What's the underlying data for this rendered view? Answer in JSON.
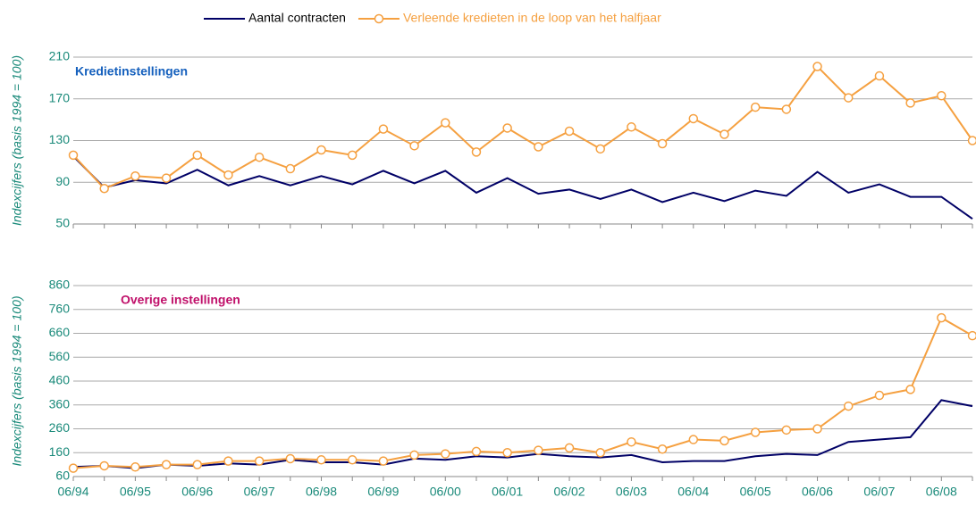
{
  "chart_data": [
    {
      "type": "line",
      "title": "Kredietinstellingen",
      "title_color": "#1560bd",
      "y_label": "Indexcijfers (basis 1994 = 100)",
      "ylim": [
        50,
        210
      ],
      "yticks": [
        50,
        90,
        130,
        170,
        210
      ],
      "grid": true,
      "legend": "top",
      "series": [
        {
          "name": "Aantal contracten",
          "color": "#000066",
          "marker": false,
          "values": [
            115,
            85,
            92,
            89,
            102,
            87,
            96,
            87,
            96,
            88,
            101,
            89,
            101,
            80,
            94,
            79,
            83,
            74,
            83,
            71,
            80,
            72,
            82,
            77,
            100,
            80,
            88,
            76,
            76,
            55
          ]
        },
        {
          "name": "Verleende kredieten in de loop van het halfjaar",
          "color": "#f5a040",
          "marker": true,
          "values": [
            116,
            84,
            96,
            94,
            116,
            97,
            114,
            103,
            121,
            116,
            141,
            125,
            147,
            119,
            142,
            124,
            139,
            122,
            143,
            127,
            151,
            136,
            162,
            160,
            201,
            171,
            192,
            166,
            173,
            130
          ]
        }
      ]
    },
    {
      "type": "line",
      "title": "Overige instellingen",
      "title_color": "#c0106a",
      "y_label": "Indexcijfers (basis 1994 = 100)",
      "ylim": [
        60,
        860
      ],
      "yticks": [
        60,
        160,
        260,
        360,
        460,
        560,
        660,
        760,
        860
      ],
      "grid": true,
      "categories": [
        "06/94",
        null,
        "06/95",
        null,
        "06/96",
        null,
        "06/97",
        null,
        "06/98",
        null,
        "06/99",
        null,
        "06/00",
        null,
        "06/01",
        null,
        "06/02",
        null,
        "06/03",
        null,
        "06/04",
        null,
        "06/05",
        null,
        "06/06",
        null,
        "06/07",
        null,
        "06/08",
        null
      ],
      "series": [
        {
          "color": "#000066",
          "marker": false,
          "values": [
            100,
            105,
            95,
            110,
            105,
            115,
            110,
            130,
            120,
            120,
            110,
            135,
            130,
            145,
            140,
            155,
            145,
            140,
            150,
            120,
            125,
            125,
            145,
            155,
            150,
            205,
            215,
            225,
            380,
            355
          ]
        },
        {
          "color": "#f5a040",
          "marker": true,
          "values": [
            95,
            105,
            100,
            110,
            110,
            125,
            125,
            135,
            130,
            130,
            125,
            150,
            155,
            165,
            160,
            170,
            180,
            160,
            205,
            175,
            215,
            210,
            245,
            255,
            260,
            355,
            400,
            425,
            725,
            650
          ]
        }
      ]
    }
  ]
}
